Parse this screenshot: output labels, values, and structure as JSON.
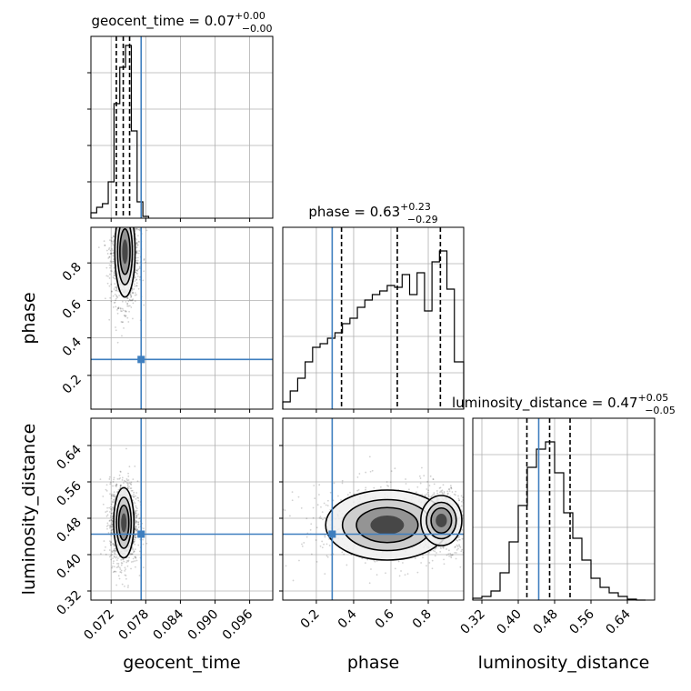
{
  "figure": {
    "truth_color": "#3f7fbf",
    "hist_color": "#000000",
    "quantile_color": "#000000"
  },
  "chart_data": {
    "type": "corner",
    "parameters": [
      "geocent_time",
      "phase",
      "luminosity_distance"
    ],
    "titles": {
      "geocent_time": {
        "name": "geocent_time",
        "median": "0.07",
        "plus": "+0.00",
        "minus": "−0.00"
      },
      "phase": {
        "name": "phase",
        "median": "0.63",
        "plus": "+0.23",
        "minus": "−0.29"
      },
      "luminosity_distance": {
        "name": "luminosity_distance",
        "median": "0.47",
        "plus": "+0.05",
        "minus": "−0.05"
      }
    },
    "axis_labels": {
      "x": [
        "geocent_time",
        "phase",
        "luminosity_distance"
      ],
      "y": [
        "phase",
        "luminosity_distance"
      ]
    },
    "ranges": {
      "geocent_time": [
        0.0685,
        0.1
      ],
      "phase": [
        0.02,
        0.99
      ],
      "luminosity_distance": [
        0.3,
        0.7
      ]
    },
    "ticks": {
      "geocent_time": {
        "values": [
          0.072,
          0.078,
          0.084,
          0.09,
          0.096
        ],
        "labels": [
          "0.072",
          "0.078",
          "0.084",
          "0.090",
          "0.096"
        ]
      },
      "phase": {
        "values": [
          0.2,
          0.4,
          0.6,
          0.8
        ],
        "labels": [
          "0.2",
          "0.4",
          "0.6",
          "0.8"
        ]
      },
      "luminosity_distance": {
        "values": [
          0.32,
          0.4,
          0.48,
          0.56,
          0.64
        ],
        "labels": [
          "0.32",
          "0.40",
          "0.48",
          "0.56",
          "0.64"
        ]
      }
    },
    "truths": {
      "geocent_time": 0.0772,
      "phase": 0.285,
      "luminosity_distance": 0.445
    },
    "quantiles": {
      "geocent_time": [
        0.0729,
        0.0741,
        0.0752
      ],
      "phase": [
        0.335,
        0.634,
        0.865
      ],
      "luminosity_distance": [
        0.419,
        0.469,
        0.514
      ]
    },
    "histograms": {
      "geocent_time": {
        "edges": [
          0.0685,
          0.0695,
          0.0705,
          0.0715,
          0.0725,
          0.0735,
          0.0745,
          0.0755,
          0.0765,
          0.0775,
          0.0785
        ],
        "counts": [
          0.03,
          0.06,
          0.08,
          0.2,
          0.63,
          0.83,
          0.95,
          0.48,
          0.09,
          0.01
        ]
      },
      "phase": {
        "edges": [
          0.02,
          0.06,
          0.1,
          0.14,
          0.18,
          0.22,
          0.26,
          0.3,
          0.34,
          0.38,
          0.42,
          0.46,
          0.5,
          0.54,
          0.58,
          0.62,
          0.66,
          0.7,
          0.74,
          0.78,
          0.82,
          0.86,
          0.9,
          0.94,
          0.99
        ],
        "counts": [
          0.04,
          0.1,
          0.17,
          0.26,
          0.34,
          0.36,
          0.39,
          0.42,
          0.47,
          0.5,
          0.56,
          0.6,
          0.63,
          0.65,
          0.68,
          0.67,
          0.74,
          0.63,
          0.75,
          0.54,
          0.81,
          0.87,
          0.66,
          0.26
        ]
      },
      "luminosity_distance": {
        "edges": [
          0.3,
          0.32,
          0.34,
          0.36,
          0.38,
          0.4,
          0.42,
          0.44,
          0.46,
          0.48,
          0.5,
          0.52,
          0.54,
          0.56,
          0.58,
          0.6,
          0.62,
          0.64,
          0.66,
          0.68
        ],
        "counts": [
          0.01,
          0.02,
          0.05,
          0.15,
          0.32,
          0.52,
          0.73,
          0.83,
          0.87,
          0.7,
          0.48,
          0.34,
          0.22,
          0.12,
          0.07,
          0.04,
          0.02,
          0.005,
          0.0
        ]
      }
    },
    "posterior_peaks": [
      {
        "x": "geocent_time",
        "y": "phase",
        "center": [
          0.0744,
          0.86
        ],
        "spread": [
          0.0008,
          0.11
        ]
      },
      {
        "x": "geocent_time",
        "y": "luminosity_distance",
        "center": [
          0.0742,
          0.47
        ],
        "spread": [
          0.0008,
          0.035
        ]
      },
      {
        "x": "phase",
        "y": "luminosity_distance",
        "center": [
          0.58,
          0.465
        ],
        "spread": [
          0.15,
          0.035
        ]
      },
      {
        "x": "phase",
        "y": "luminosity_distance",
        "center": [
          0.87,
          0.475
        ],
        "spread": [
          0.05,
          0.025
        ]
      }
    ]
  }
}
